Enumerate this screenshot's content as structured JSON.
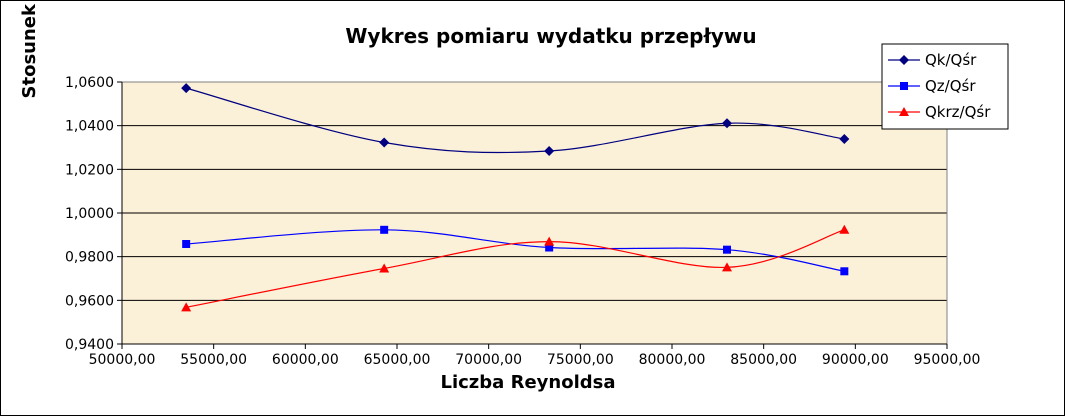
{
  "chart_data": {
    "type": "line",
    "title": "Wykres pomiaru wydatku przepływu",
    "xlabel": "Liczba Reynoldsa",
    "ylabel": "Stosunek",
    "xlim": [
      50000,
      95000
    ],
    "ylim": [
      0.94,
      1.06
    ],
    "x_ticks": [
      50000,
      55000,
      60000,
      65000,
      70000,
      75000,
      80000,
      85000,
      90000,
      95000
    ],
    "x_tick_labels": [
      "50000,00",
      "55000,00",
      "60000,00",
      "65000,00",
      "70000,00",
      "75000,00",
      "80000,00",
      "85000,00",
      "90000,00",
      "95000,00"
    ],
    "y_ticks": [
      0.94,
      0.96,
      0.98,
      1.0,
      1.02,
      1.04,
      1.06
    ],
    "y_tick_labels": [
      "0,9400",
      "0,9600",
      "0,9800",
      "1,0000",
      "1,0200",
      "1,0400",
      "1,0600"
    ],
    "grid": "horizontal",
    "legend_position": "top-right",
    "plot_background": "#fbf0d8",
    "series": [
      {
        "name": "Qk/Qśr",
        "color": "#000080",
        "marker": "diamond",
        "x": [
          53500,
          64300,
          73300,
          83000,
          89400
        ],
        "y": [
          1.0572,
          1.0323,
          1.0284,
          1.0411,
          1.0339
        ]
      },
      {
        "name": "Qz/Qśr",
        "color": "#0000ff",
        "marker": "square",
        "x": [
          53500,
          64300,
          73300,
          83000,
          89400
        ],
        "y": [
          0.9858,
          0.9923,
          0.9842,
          0.9832,
          0.9733
        ]
      },
      {
        "name": "Qkrz/Qśr",
        "color": "#ff0000",
        "marker": "triangle",
        "x": [
          53500,
          64300,
          73300,
          83000,
          89400
        ],
        "y": [
          0.9568,
          0.9746,
          0.9869,
          0.9751,
          0.9923
        ]
      }
    ]
  }
}
